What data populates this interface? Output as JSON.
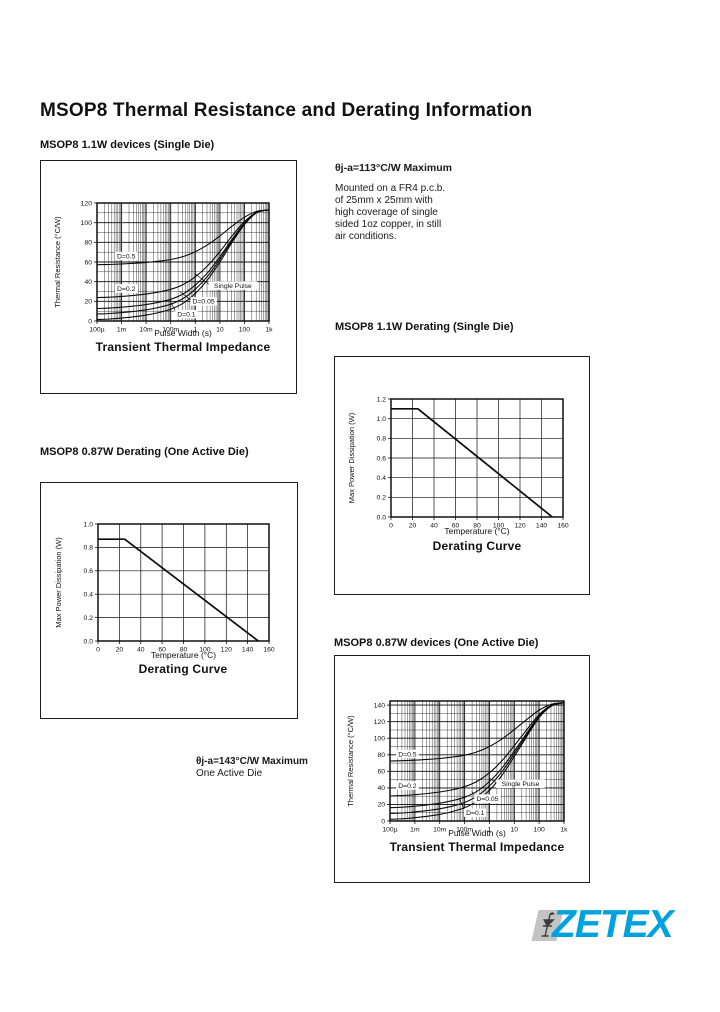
{
  "page": {
    "title": "MSOP8 Thermal Resistance and Derating Information"
  },
  "sections": [
    {
      "heading": "MSOP8 1.1W devices (Single Die)"
    },
    {
      "heading": "MSOP8 1.1W Derating (Single Die)"
    },
    {
      "heading": "MSOP8 0.87W Derating (One Active Die)"
    },
    {
      "heading": "MSOP8 0.87W devices (One Active Die)"
    }
  ],
  "notes": {
    "thermal_1": {
      "headline": "θj-a=113°C/W Maximum",
      "lines": [
        "Mounted on a FR4 p.c.b.",
        "of 25mm x 25mm with",
        "high coverage of single",
        "sided 1oz copper, in still",
        "air conditions."
      ]
    },
    "thermal_2": {
      "headline": "θj-a=143°C/W Maximum",
      "subline": "One Active Die"
    }
  },
  "logo": {
    "text": "ZETEX",
    "color": "#00A1DF",
    "badge_color": "#c3c3c3",
    "icon": "diode-symbol-icon"
  },
  "ink_color": "#111111",
  "chart_data": [
    {
      "type": "line",
      "title": "Transient Thermal Impedance",
      "xlabel": "Pulse Width (s)",
      "ylabel": "Thermal Resistance (°C/W)",
      "x_scale": "log",
      "xlim": [
        0.0001,
        1000
      ],
      "ylim": [
        0,
        120
      ],
      "y_minor": 10,
      "smooth": true,
      "stroke": 1.1,
      "x_ticks": [
        0.0001,
        0.001,
        0.01,
        0.1,
        1,
        10,
        100,
        1000
      ],
      "x_tick_labels": [
        "100µ",
        "1m",
        "10m",
        "100m",
        "1",
        "10",
        "100",
        "1k"
      ],
      "y_ticks": [
        0,
        20,
        40,
        60,
        80,
        100,
        120
      ],
      "y_tick_labels": [
        "0",
        "20",
        "40",
        "60",
        "80",
        "100",
        "120"
      ],
      "x": [
        0.0001,
        0.000316,
        0.001,
        0.00316,
        0.01,
        0.0316,
        0.1,
        0.316,
        1,
        3.16,
        10,
        31.6,
        100,
        316,
        1000
      ],
      "series": [
        {
          "name": "D=0.5",
          "values": [
            57.3,
            57.5,
            58,
            58.7,
            59.5,
            60.8,
            62.5,
            65.5,
            70.5,
            77.5,
            86.5,
            96.5,
            105.5,
            111.5,
            113
          ]
        },
        {
          "name": "D=0.2",
          "values": [
            23.8,
            24.2,
            25,
            26,
            27.4,
            29.4,
            32.2,
            37,
            45,
            56.2,
            70.6,
            86.6,
            101,
            110.6,
            113
          ]
        },
        {
          "name": "D=0.1",
          "values": [
            12.7,
            13.1,
            14,
            15.2,
            16.7,
            19,
            22.1,
            27.5,
            36.5,
            49.1,
            65.3,
            83.3,
            99.5,
            110.3,
            113
          ]
        },
        {
          "name": "D=0.05",
          "values": [
            7.1,
            7.6,
            8.5,
            9.7,
            11.4,
            13.7,
            17.1,
            22.8,
            32.3,
            45.6,
            62.7,
            81.7,
            98.8,
            110.2,
            113
          ]
        },
        {
          "name": "Single Pulse",
          "values": [
            1.5,
            2,
            3,
            4.3,
            6,
            8.5,
            12,
            18,
            28,
            42,
            60,
            80,
            98,
            110,
            113
          ]
        }
      ],
      "labels": [
        {
          "text": "D=0.5",
          "fx": 0.17,
          "fv": 66
        },
        {
          "text": "D=0.2",
          "fx": 0.17,
          "fv": 33
        },
        {
          "text": "D=0.1",
          "fx": 0.52,
          "fv": 7,
          "tx": 0.42,
          "tv": 22
        },
        {
          "text": "D=0.05",
          "fx": 0.62,
          "fv": 20,
          "tx": 0.48,
          "tv": 30
        },
        {
          "text": "Single Pulse",
          "fx": 0.79,
          "fv": 36,
          "tx": 0.57,
          "tv": 48
        }
      ]
    },
    {
      "type": "line",
      "title": "Derating Curve",
      "xlabel": "Temperature (°C)",
      "ylabel": "Max Power Dissipation (W)",
      "x_scale": "linear",
      "xlim": [
        0,
        160
      ],
      "ylim": [
        0,
        1.2
      ],
      "smooth": false,
      "stroke": 1.7,
      "x_ticks": [
        0,
        20,
        40,
        60,
        80,
        100,
        120,
        140,
        160
      ],
      "x_tick_labels": [
        "0",
        "20",
        "40",
        "60",
        "80",
        "100",
        "120",
        "140",
        "160"
      ],
      "y_ticks": [
        0,
        0.2,
        0.4,
        0.6,
        0.8,
        1.0,
        1.2
      ],
      "y_tick_labels": [
        "0.0",
        "0.2",
        "0.4",
        "0.6",
        "0.8",
        "1.0",
        "1.2"
      ],
      "x": [
        0,
        25,
        150
      ],
      "series": [
        {
          "name": "Max Power Dissipation",
          "values": [
            1.1,
            1.1,
            0
          ]
        }
      ],
      "labels": []
    },
    {
      "type": "line",
      "title": "Derating Curve",
      "xlabel": "Temperature (°C)",
      "ylabel": "Max Power Dissipation (W)",
      "x_scale": "linear",
      "xlim": [
        0,
        160
      ],
      "ylim": [
        0,
        1.0
      ],
      "smooth": false,
      "stroke": 1.7,
      "x_ticks": [
        0,
        20,
        40,
        60,
        80,
        100,
        120,
        140,
        160
      ],
      "x_tick_labels": [
        "0",
        "20",
        "40",
        "60",
        "80",
        "100",
        "120",
        "140",
        "160"
      ],
      "y_ticks": [
        0,
        0.2,
        0.4,
        0.6,
        0.8,
        1.0
      ],
      "y_tick_labels": [
        "0.0",
        "0.2",
        "0.4",
        "0.6",
        "0.8",
        "1.0"
      ],
      "x": [
        0,
        25,
        150
      ],
      "series": [
        {
          "name": "Max Power Dissipation",
          "values": [
            0.87,
            0.87,
            0
          ]
        }
      ],
      "labels": []
    },
    {
      "type": "line",
      "title": "Transient Thermal Impedance",
      "xlabel": "Pulse Width (s)",
      "ylabel": "Thermal Resistance (°C/W)",
      "x_scale": "log",
      "xlim": [
        0.0001,
        1000
      ],
      "ylim": [
        0,
        145
      ],
      "y_minor": 10,
      "smooth": true,
      "stroke": 1.1,
      "x_ticks": [
        0.0001,
        0.001,
        0.01,
        0.1,
        1,
        10,
        100,
        1000
      ],
      "x_tick_labels": [
        "100µ",
        "1m",
        "10m",
        "100m",
        "1",
        "10",
        "100",
        "1k"
      ],
      "y_ticks": [
        0,
        20,
        40,
        60,
        80,
        100,
        120,
        140
      ],
      "y_tick_labels": [
        "0",
        "20",
        "40",
        "60",
        "80",
        "100",
        "120",
        "140"
      ],
      "x": [
        0.0001,
        0.000316,
        0.001,
        0.00316,
        0.01,
        0.0316,
        0.1,
        0.316,
        1,
        3.16,
        10,
        31.6,
        100,
        316,
        1000
      ],
      "series": [
        {
          "name": "D=0.5",
          "values": [
            72.5,
            72.9,
            73.5,
            74.4,
            75.5,
            77.2,
            79.5,
            83.5,
            90,
            99,
            110.5,
            122.5,
            134,
            141,
            143
          ]
        },
        {
          "name": "D=0.2",
          "values": [
            30.2,
            30.8,
            31.8,
            33.2,
            35,
            37.6,
            41.4,
            47.8,
            58.2,
            72.6,
            91,
            110.2,
            128.6,
            139.8,
            143
          ]
        },
        {
          "name": "D=0.1",
          "values": [
            16.1,
            16.7,
            17.9,
            19.4,
            21.5,
            24.5,
            28.7,
            35.9,
            47.6,
            63.8,
            84.5,
            106.1,
            126.8,
            139.4,
            143
          ]
        },
        {
          "name": "D=0.05",
          "values": [
            9.1,
            9.7,
            11,
            12.6,
            14.8,
            17.9,
            22.4,
            30,
            42.3,
            59.4,
            81.3,
            104.1,
            125.9,
            139.2,
            143
          ]
        },
        {
          "name": "Single Pulse",
          "values": [
            2,
            2.7,
            4,
            5.7,
            8,
            11.3,
            16,
            24,
            37,
            55,
            78,
            102,
            125,
            139,
            143
          ]
        }
      ],
      "labels": [
        {
          "text": "D=0.5",
          "fx": 0.1,
          "fv": 81
        },
        {
          "text": "D=0.2",
          "fx": 0.1,
          "fv": 43
        },
        {
          "text": "D=0.1",
          "fx": 0.49,
          "fv": 10,
          "tx": 0.4,
          "tv": 26
        },
        {
          "text": "D=0.05",
          "fx": 0.56,
          "fv": 27,
          "tx": 0.47,
          "tv": 36
        },
        {
          "text": "Single Pulse",
          "fx": 0.75,
          "fv": 45,
          "tx": 0.57,
          "tv": 52
        }
      ]
    }
  ]
}
